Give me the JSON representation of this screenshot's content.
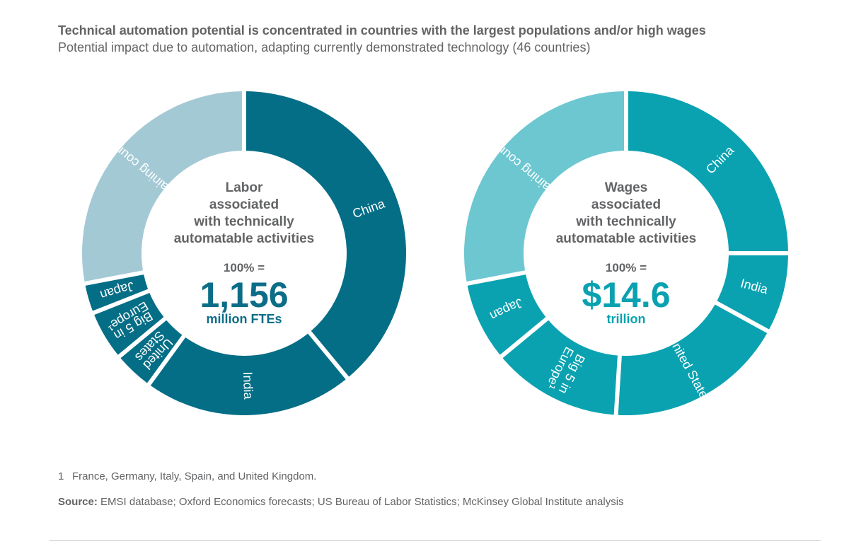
{
  "header": {
    "title": "Technical automation potential is concentrated in countries with the largest populations and/or high wages",
    "subtitle": "Potential impact due to automation, adapting currently demonstrated technology (46 countries)"
  },
  "chart_data": [
    {
      "type": "pie",
      "variant": "donut",
      "center": {
        "heading_lines": [
          "Labor",
          "associated",
          "with technically",
          "automatable activities"
        ],
        "pct_label": "100% =",
        "total": "1,156",
        "unit": "million FTEs"
      },
      "accent_color": "#0b6d87",
      "slices": [
        {
          "label_lines": [
            "China"
          ],
          "value": 39,
          "color": "#046e86"
        },
        {
          "label_lines": [
            "India"
          ],
          "value": 21,
          "color": "#046e86"
        },
        {
          "label_lines": [
            "United",
            "States"
          ],
          "value": 4,
          "color": "#046e86"
        },
        {
          "label_lines": [
            "Big 5 in",
            "Europe¹"
          ],
          "value": 5,
          "color": "#046e86"
        },
        {
          "label_lines": [
            "Japan"
          ],
          "value": 3,
          "color": "#046e86"
        },
        {
          "label_lines": [
            "Remaining countries"
          ],
          "value": 28,
          "color": "#a3c9d5"
        }
      ]
    },
    {
      "type": "pie",
      "variant": "donut",
      "center": {
        "heading_lines": [
          "Wages",
          "associated",
          "with technically",
          "automatable activities"
        ],
        "pct_label": "100% =",
        "total": "$14.6",
        "unit": "trillion"
      },
      "accent_color": "#0aa2b0",
      "slices": [
        {
          "label_lines": [
            "China"
          ],
          "value": 25,
          "color": "#0aa2b1"
        },
        {
          "label_lines": [
            "India"
          ],
          "value": 8,
          "color": "#0aa2b1"
        },
        {
          "label_lines": [
            "United States"
          ],
          "value": 18,
          "color": "#0aa2b1"
        },
        {
          "label_lines": [
            "Big 5 in",
            "Europe¹"
          ],
          "value": 13,
          "color": "#0aa2b1"
        },
        {
          "label_lines": [
            "Japan"
          ],
          "value": 8,
          "color": "#0aa2b1"
        },
        {
          "label_lines": [
            "Remaining countries"
          ],
          "value": 28,
          "color": "#6cc7d1"
        }
      ]
    }
  ],
  "footnote": {
    "number": "1",
    "text": "France, Germany, Italy, Spain, and United Kingdom."
  },
  "source": {
    "label": "Source:",
    "text": "EMSI database; Oxford Economics forecasts; US Bureau of Labor Statistics; McKinsey Global Institute analysis"
  }
}
